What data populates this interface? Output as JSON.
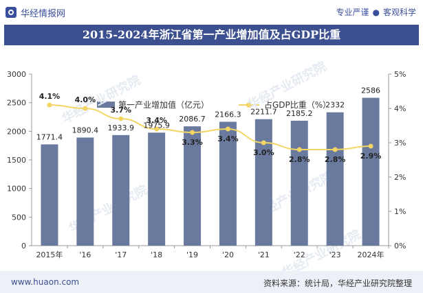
{
  "header": {
    "brand": "华经情报网",
    "slogan_left": "专业严谨",
    "slogan_sep": "●",
    "slogan_right": "客观科学",
    "title": "2015-2024年浙江省第一产业增加值及占GDP比重"
  },
  "legend": {
    "bar_label": "第一产业增加值（亿元）",
    "line_label": "占GDP比重（%）"
  },
  "watermark": "华经产业研究院",
  "footer": {
    "url": "www.huaon.com",
    "source": "资料来源：统计局，华经产业研究院整理"
  },
  "colors": {
    "bar": "#6a7a9e",
    "line": "#f3d564",
    "title_bg": "#3c4f8f"
  },
  "chart_data": {
    "type": "bar",
    "categories": [
      "2015年",
      "'16",
      "'17",
      "'18",
      "'19",
      "'20",
      "'21",
      "'22",
      "'23",
      "2024年"
    ],
    "series": [
      {
        "name": "第一产业增加值（亿元）",
        "type": "bar",
        "axis": "left",
        "values": [
          1771.4,
          1890.4,
          1933.9,
          1975.9,
          2086.7,
          2166.3,
          2211.7,
          2185.2,
          2332,
          2586
        ],
        "labels": [
          "1771.4",
          "1890.4",
          "1933.9",
          "1975.9",
          "2086.7",
          "2166.3",
          "2211.7",
          "2185.2",
          "2332",
          "2586"
        ]
      },
      {
        "name": "占GDP比重（%）",
        "type": "line",
        "axis": "right",
        "values": [
          4.1,
          4.0,
          3.7,
          3.4,
          3.3,
          3.4,
          3.0,
          2.8,
          2.8,
          2.9
        ],
        "labels": [
          "4.1%",
          "4.0%",
          "3.7%",
          "3.4%",
          "3.3%",
          "3.4%",
          "3.0%",
          "2.8%",
          "2.8%",
          "2.9%"
        ]
      }
    ],
    "left_axis": {
      "ylim": [
        0,
        3000
      ],
      "ticks": [
        0,
        500,
        1000,
        1500,
        2000,
        2500,
        3000
      ],
      "tick_labels": [
        "0",
        "500",
        "1000",
        "1500",
        "2000",
        "2500",
        "3000"
      ]
    },
    "right_axis": {
      "ylim": [
        0,
        5
      ],
      "ticks": [
        0,
        1,
        2,
        3,
        4,
        5
      ],
      "tick_labels": [
        "0%",
        "1%",
        "2%",
        "3%",
        "4%",
        "5%"
      ]
    },
    "grid": false,
    "legend_position": "top-center"
  }
}
